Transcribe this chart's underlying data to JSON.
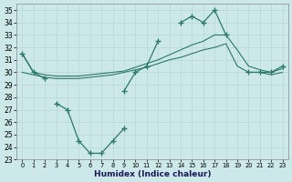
{
  "xlabel": "Humidex (Indice chaleur)",
  "bg_color": "#cce8e8",
  "grid_color": "#b8d8d8",
  "line_color": "#2a7a6a",
  "ylim": [
    23,
    35.5
  ],
  "yticks": [
    23,
    24,
    25,
    26,
    27,
    28,
    29,
    30,
    31,
    32,
    33,
    34,
    35
  ],
  "xticks": [
    0,
    1,
    2,
    3,
    4,
    5,
    6,
    7,
    8,
    9,
    10,
    11,
    12,
    13,
    14,
    15,
    16,
    17,
    18,
    19,
    20,
    21,
    22,
    23
  ],
  "line_zigzag": [
    31.5,
    30.0,
    29.5,
    null,
    null,
    null,
    null,
    null,
    null,
    28.5,
    30.0,
    30.5,
    32.5,
    null,
    34.0,
    34.5,
    34.0,
    35.0,
    33.0,
    null,
    30.0,
    30.0,
    30.0,
    30.5
  ],
  "line_dip": [
    null,
    null,
    null,
    27.5,
    27.0,
    24.5,
    23.5,
    23.5,
    24.5,
    25.5,
    null,
    null,
    null,
    null,
    null,
    null,
    null,
    null,
    null,
    null,
    null,
    null,
    null,
    null
  ],
  "line_upper": [
    31.5,
    30.0,
    29.8,
    29.7,
    29.7,
    29.7,
    29.8,
    29.9,
    30.0,
    30.1,
    30.4,
    30.7,
    31.0,
    31.4,
    31.8,
    32.2,
    32.5,
    33.0,
    33.0,
    31.8,
    30.5,
    30.2,
    30.0,
    30.3
  ],
  "line_lower": [
    30.0,
    29.8,
    29.6,
    29.5,
    29.5,
    29.5,
    29.6,
    29.7,
    29.8,
    30.0,
    30.2,
    30.4,
    30.7,
    31.0,
    31.2,
    31.5,
    31.8,
    32.0,
    32.3,
    30.5,
    30.0,
    30.0,
    29.8,
    30.0
  ]
}
